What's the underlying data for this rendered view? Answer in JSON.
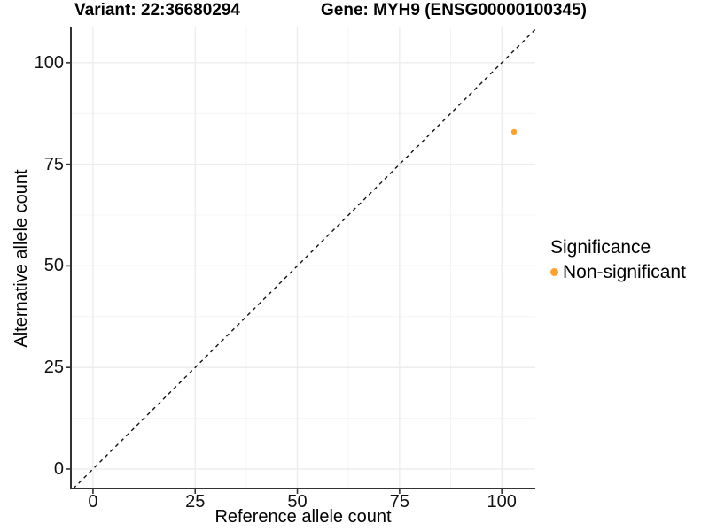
{
  "header": {
    "variant_title": "Variant: 22:36680294",
    "gene_title": "Gene: MYH9 (ENSG00000100345)"
  },
  "chart_data": {
    "type": "scatter",
    "title": "Variant: 22:36680294  /  Gene: MYH9 (ENSG00000100345)",
    "xlabel": "Reference allele count",
    "ylabel": "Alternative allele count",
    "x_ticks": [
      0,
      25,
      50,
      75,
      100
    ],
    "y_ticks": [
      0,
      25,
      50,
      75,
      100
    ],
    "x_minor_ticks": [
      12.5,
      37.5,
      62.5,
      87.5
    ],
    "y_minor_ticks": [
      12.5,
      37.5,
      62.5,
      87.5
    ],
    "xlim": [
      -5.4,
      108.2
    ],
    "ylim": [
      -4.8,
      108.9
    ],
    "grid": "major+minor",
    "reference_line": {
      "equation": "y = x",
      "style": "dashed",
      "color": "#111111"
    },
    "series": [
      {
        "name": "Non-significant",
        "color": "#F9A12B",
        "points": [
          {
            "x": 103,
            "y": 83
          }
        ]
      }
    ],
    "legend": {
      "title": "Significance",
      "position": "right",
      "items": [
        {
          "label": "Non-significant",
          "color": "#F9A12B"
        }
      ]
    }
  },
  "colors": {
    "accent_orange": "#F9A12B",
    "grid_major": "#EBEBEB",
    "grid_minor": "#F4F4F4",
    "axis_line": "#333333",
    "panel_background": "#FFFFFF"
  }
}
